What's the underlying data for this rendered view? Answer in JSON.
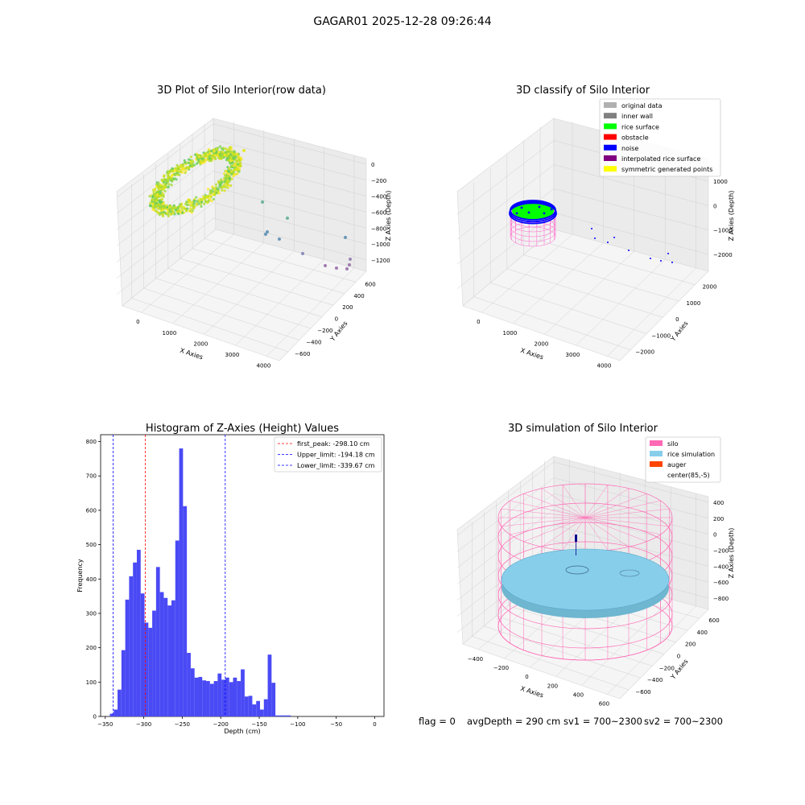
{
  "suptitle": "GAGAR01 2025-12-28 09:26:44",
  "colors": {
    "hist_bar": "#4a4af5",
    "first_peak_line": "#ff0000",
    "limit_line": "#0000ff",
    "silo_wire": "#ff69b4",
    "rice_sim": "#87ceeb",
    "auger": "#ff4500",
    "rice_surface": "#00ff00",
    "noise": "#0000ff",
    "interpolated": "#800080",
    "symmetric": "#ffff00",
    "original": "#b0b0b0",
    "inner_wall": "#808080",
    "obstacle": "#ff0000"
  },
  "chart_data": [
    {
      "type": "scatter",
      "title": "3D Plot of Silo Interior(row data)",
      "xlabel": "X Axies",
      "ylabel": "Y Axies",
      "zlabel": "Z Axies (Depth)",
      "x_ticks": [
        "0",
        "1000",
        "2000",
        "3000",
        "4000"
      ],
      "y_ticks": [
        "600",
        "400",
        "200",
        "0",
        "−200",
        "−400",
        "−600"
      ],
      "z_ticks": [
        "0",
        "−200",
        "−400",
        "−600",
        "−800",
        "−1000",
        "−1200"
      ]
    },
    {
      "type": "scatter",
      "title": "3D classify of Silo Interior",
      "xlabel": "X Axies",
      "ylabel": "Y Axies",
      "zlabel": "Z Axies (Depth)",
      "x_ticks": [
        "0",
        "1000",
        "2000",
        "3000",
        "4000"
      ],
      "y_ticks": [
        "2000",
        "1000",
        "0",
        "−1000",
        "−2000"
      ],
      "z_ticks": [
        "1000",
        "0",
        "−1000",
        "−2000"
      ],
      "legend": [
        {
          "label": "original data",
          "color": "#b0b0b0"
        },
        {
          "label": "inner wall",
          "color": "#808080"
        },
        {
          "label": "rice surface",
          "color": "#00ff00"
        },
        {
          "label": "obstacle",
          "color": "#ff0000"
        },
        {
          "label": "noise",
          "color": "#0000ff"
        },
        {
          "label": "interpolated rice surface",
          "color": "#800080"
        },
        {
          "label": "symmetric generated points",
          "color": "#ffff00"
        }
      ]
    },
    {
      "type": "bar",
      "title": "Histogram of Z-Axies (Height) Values",
      "xlabel": "Depth (cm)",
      "ylabel": "Frequency",
      "xlim": [
        -350,
        0
      ],
      "ylim": [
        0,
        820
      ],
      "x_ticks": [
        "−350",
        "−300",
        "−250",
        "−200",
        "−150",
        "−100",
        "−50",
        "0"
      ],
      "y_ticks": [
        "0",
        "100",
        "200",
        "300",
        "400",
        "500",
        "600",
        "700",
        "800"
      ],
      "bin_start": -344,
      "bin_width": 5,
      "values": [
        8,
        20,
        78,
        193,
        340,
        408,
        448,
        485,
        358,
        273,
        258,
        308,
        435,
        362,
        345,
        323,
        338,
        512,
        780,
        612,
        185,
        140,
        113,
        115,
        105,
        103,
        95,
        103,
        125,
        107,
        113,
        100,
        113,
        103,
        137,
        58,
        60,
        35,
        45,
        20,
        50,
        180,
        98,
        3,
        3,
        3,
        3
      ],
      "vlines": [
        {
          "label": "first_peak: -298.10 cm",
          "x": -298.1,
          "color": "#ff0000"
        },
        {
          "label": "Upper_limit: -194.18 cm",
          "x": -194.18,
          "color": "#0000ff"
        },
        {
          "label": "Lower_limit: -339.67 cm",
          "x": -339.67,
          "color": "#0000ff"
        }
      ]
    },
    {
      "type": "scatter",
      "title": "3D simulation of Silo Interior",
      "xlabel": "X Axies",
      "ylabel": "Y Axies",
      "zlabel": "Z Axies (Depth)",
      "x_ticks": [
        "−400",
        "−200",
        "0",
        "200",
        "400",
        "600"
      ],
      "y_ticks": [
        "600",
        "400",
        "200",
        "0",
        "−200",
        "−400",
        "−600"
      ],
      "z_ticks": [
        "400",
        "200",
        "0",
        "−200",
        "−400",
        "−600",
        "−800"
      ],
      "legend": [
        {
          "label": "silo",
          "color": "#ff69b4"
        },
        {
          "label": "rice simulation",
          "color": "#87ceeb"
        },
        {
          "label": "auger",
          "color": "#ff4500"
        },
        {
          "label": "center(85,-5)",
          "color": ""
        }
      ]
    }
  ],
  "footer": {
    "flag": "flag = 0",
    "avg": "avgDepth = 290 cm",
    "sv1": "sv1 = 700~2300",
    "sv2": "sv2 = 700~2300"
  }
}
